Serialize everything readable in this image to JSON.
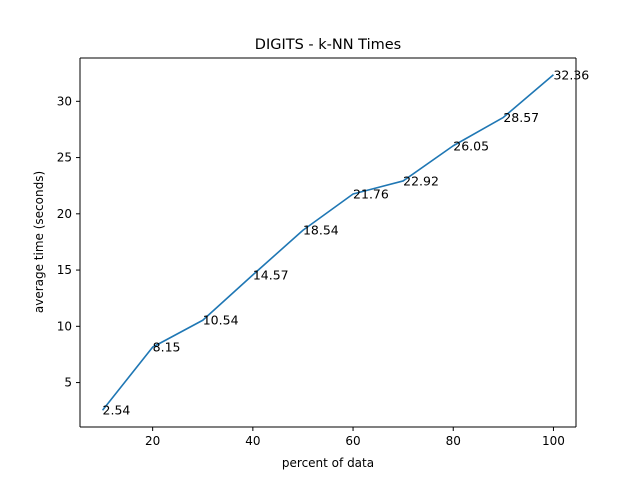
{
  "chart_data": {
    "type": "line",
    "title": "DIGITS - k-NN Times",
    "xlabel": "percent of data",
    "ylabel": "average time (seconds)",
    "x": [
      10,
      20,
      30,
      40,
      50,
      60,
      70,
      80,
      90,
      100
    ],
    "series": [
      {
        "values": [
          2.54,
          8.15,
          10.54,
          14.57,
          18.54,
          21.76,
          22.92,
          26.05,
          28.57,
          32.36
        ],
        "labels": [
          "2.54",
          "8.15",
          "10.54",
          "14.57",
          "18.54",
          "21.76",
          "22.92",
          "26.05",
          "28.57",
          "32.36"
        ],
        "color": "#1f77b4"
      }
    ],
    "xlim": [
      5.5,
      104.5
    ],
    "ylim": [
      1.05,
      33.85
    ],
    "xticks": [
      20,
      40,
      60,
      80,
      100
    ],
    "xtick_labels": [
      "20",
      "40",
      "60",
      "80",
      "100"
    ],
    "yticks": [
      5,
      10,
      15,
      20,
      25,
      30
    ],
    "ytick_labels": [
      "5",
      "10",
      "15",
      "20",
      "25",
      "30"
    ],
    "grid": false,
    "legend": "none"
  }
}
